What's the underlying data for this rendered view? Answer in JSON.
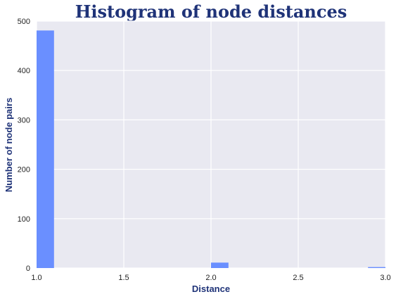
{
  "chart_data": {
    "type": "bar",
    "title": "Histogram of node distances",
    "xlabel": "Distance",
    "ylabel": "Number of node pairs",
    "xlim": [
      1.0,
      3.0
    ],
    "ylim": [
      0,
      500
    ],
    "xticks": [
      "1.0",
      "1.5",
      "2.0",
      "2.5",
      "3.0"
    ],
    "yticks": [
      "0",
      "100",
      "200",
      "300",
      "400",
      "500"
    ],
    "bins": [
      {
        "x0": 1.0,
        "x1": 1.1,
        "count": 481
      },
      {
        "x0": 2.0,
        "x1": 2.1,
        "count": 11
      },
      {
        "x0": 2.9,
        "x1": 3.0,
        "count": 2
      }
    ],
    "grid": true,
    "bar_color": "#6a8fff",
    "title_color": "#1f3378",
    "label_color": "#1f3378",
    "plot_background": "#e9e9f1",
    "grid_color": "#ffffff"
  }
}
